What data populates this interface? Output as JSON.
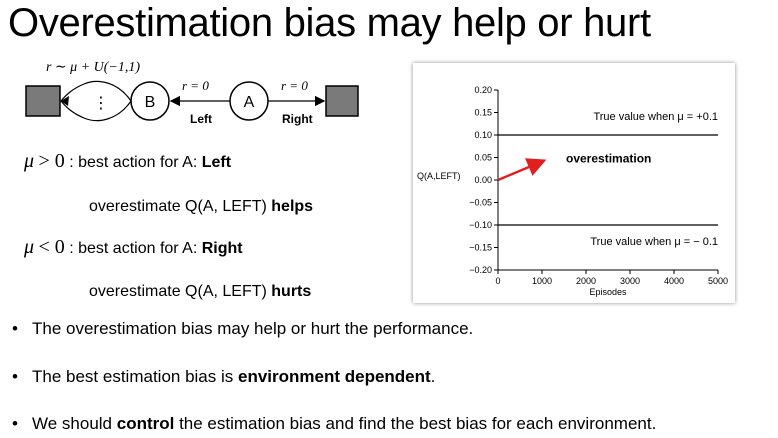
{
  "title": "Overestimation bias may help or hurt",
  "mdp": {
    "reward_b": "r ∼ μ + U(−1,1)",
    "dots": "⋮",
    "state_b": "B",
    "state_a": "A",
    "reward_left": "r = 0",
    "reward_right": "r = 0",
    "label_left": "Left",
    "label_right": "Right"
  },
  "conditions": [
    {
      "math": "μ",
      "op": "> 0",
      "text": " : best action for A: ",
      "bold": "Left",
      "sub_text": "overestimate Q(A, LEFT) ",
      "sub_bold": "helps"
    },
    {
      "math": "μ",
      "op": "< 0",
      "text": " : best action for A: ",
      "bold": "Right",
      "sub_text": "overestimate Q(A, LEFT) ",
      "sub_bold": "hurts"
    }
  ],
  "chart_data": {
    "type": "line",
    "ylabel": "Q(A,LEFT)",
    "xlabel": "Episodes",
    "xlim": [
      0,
      5000
    ],
    "ylim": [
      -0.2,
      0.2
    ],
    "x_ticks": [
      0,
      1000,
      2000,
      3000,
      4000,
      5000
    ],
    "y_ticks": [
      0.2,
      0.15,
      0.1,
      0.05,
      0.0,
      -0.05,
      -0.1,
      -0.15,
      -0.2
    ],
    "y_tick_labels": [
      "0.20",
      "0.15",
      "0.10",
      "0.05",
      "0.00",
      "−0.05",
      "−0.10",
      "−0.15",
      "−0.20"
    ],
    "series": [
      {
        "name": "True value when μ = +0.1",
        "x": [
          0,
          5000
        ],
        "y": [
          0.1,
          0.1
        ]
      },
      {
        "name": "True value when μ = − 0.1",
        "x": [
          0,
          5000
        ],
        "y": [
          -0.1,
          -0.1
        ]
      }
    ],
    "annotations": [
      {
        "text": "overestimation",
        "arrow_from": [
          0,
          0.0
        ],
        "arrow_to": [
          1000,
          0.05
        ],
        "color": "#e02020"
      }
    ]
  },
  "bullets": [
    {
      "parts": [
        {
          "t": "The overestimation bias may help or hurt the performance.",
          "b": false
        }
      ]
    },
    {
      "parts": [
        {
          "t": "The best estimation bias is ",
          "b": false
        },
        {
          "t": "environment dependent",
          "b": true
        },
        {
          "t": ".",
          "b": false
        }
      ]
    },
    {
      "parts": [
        {
          "t": "We should ",
          "b": false
        },
        {
          "t": "control",
          "b": true
        },
        {
          "t": " the estimation bias and find the best bias for each environment.",
          "b": false
        }
      ]
    }
  ],
  "colors": {
    "arrow": "#e02020",
    "terminal_fill": "#7a7a7a"
  }
}
